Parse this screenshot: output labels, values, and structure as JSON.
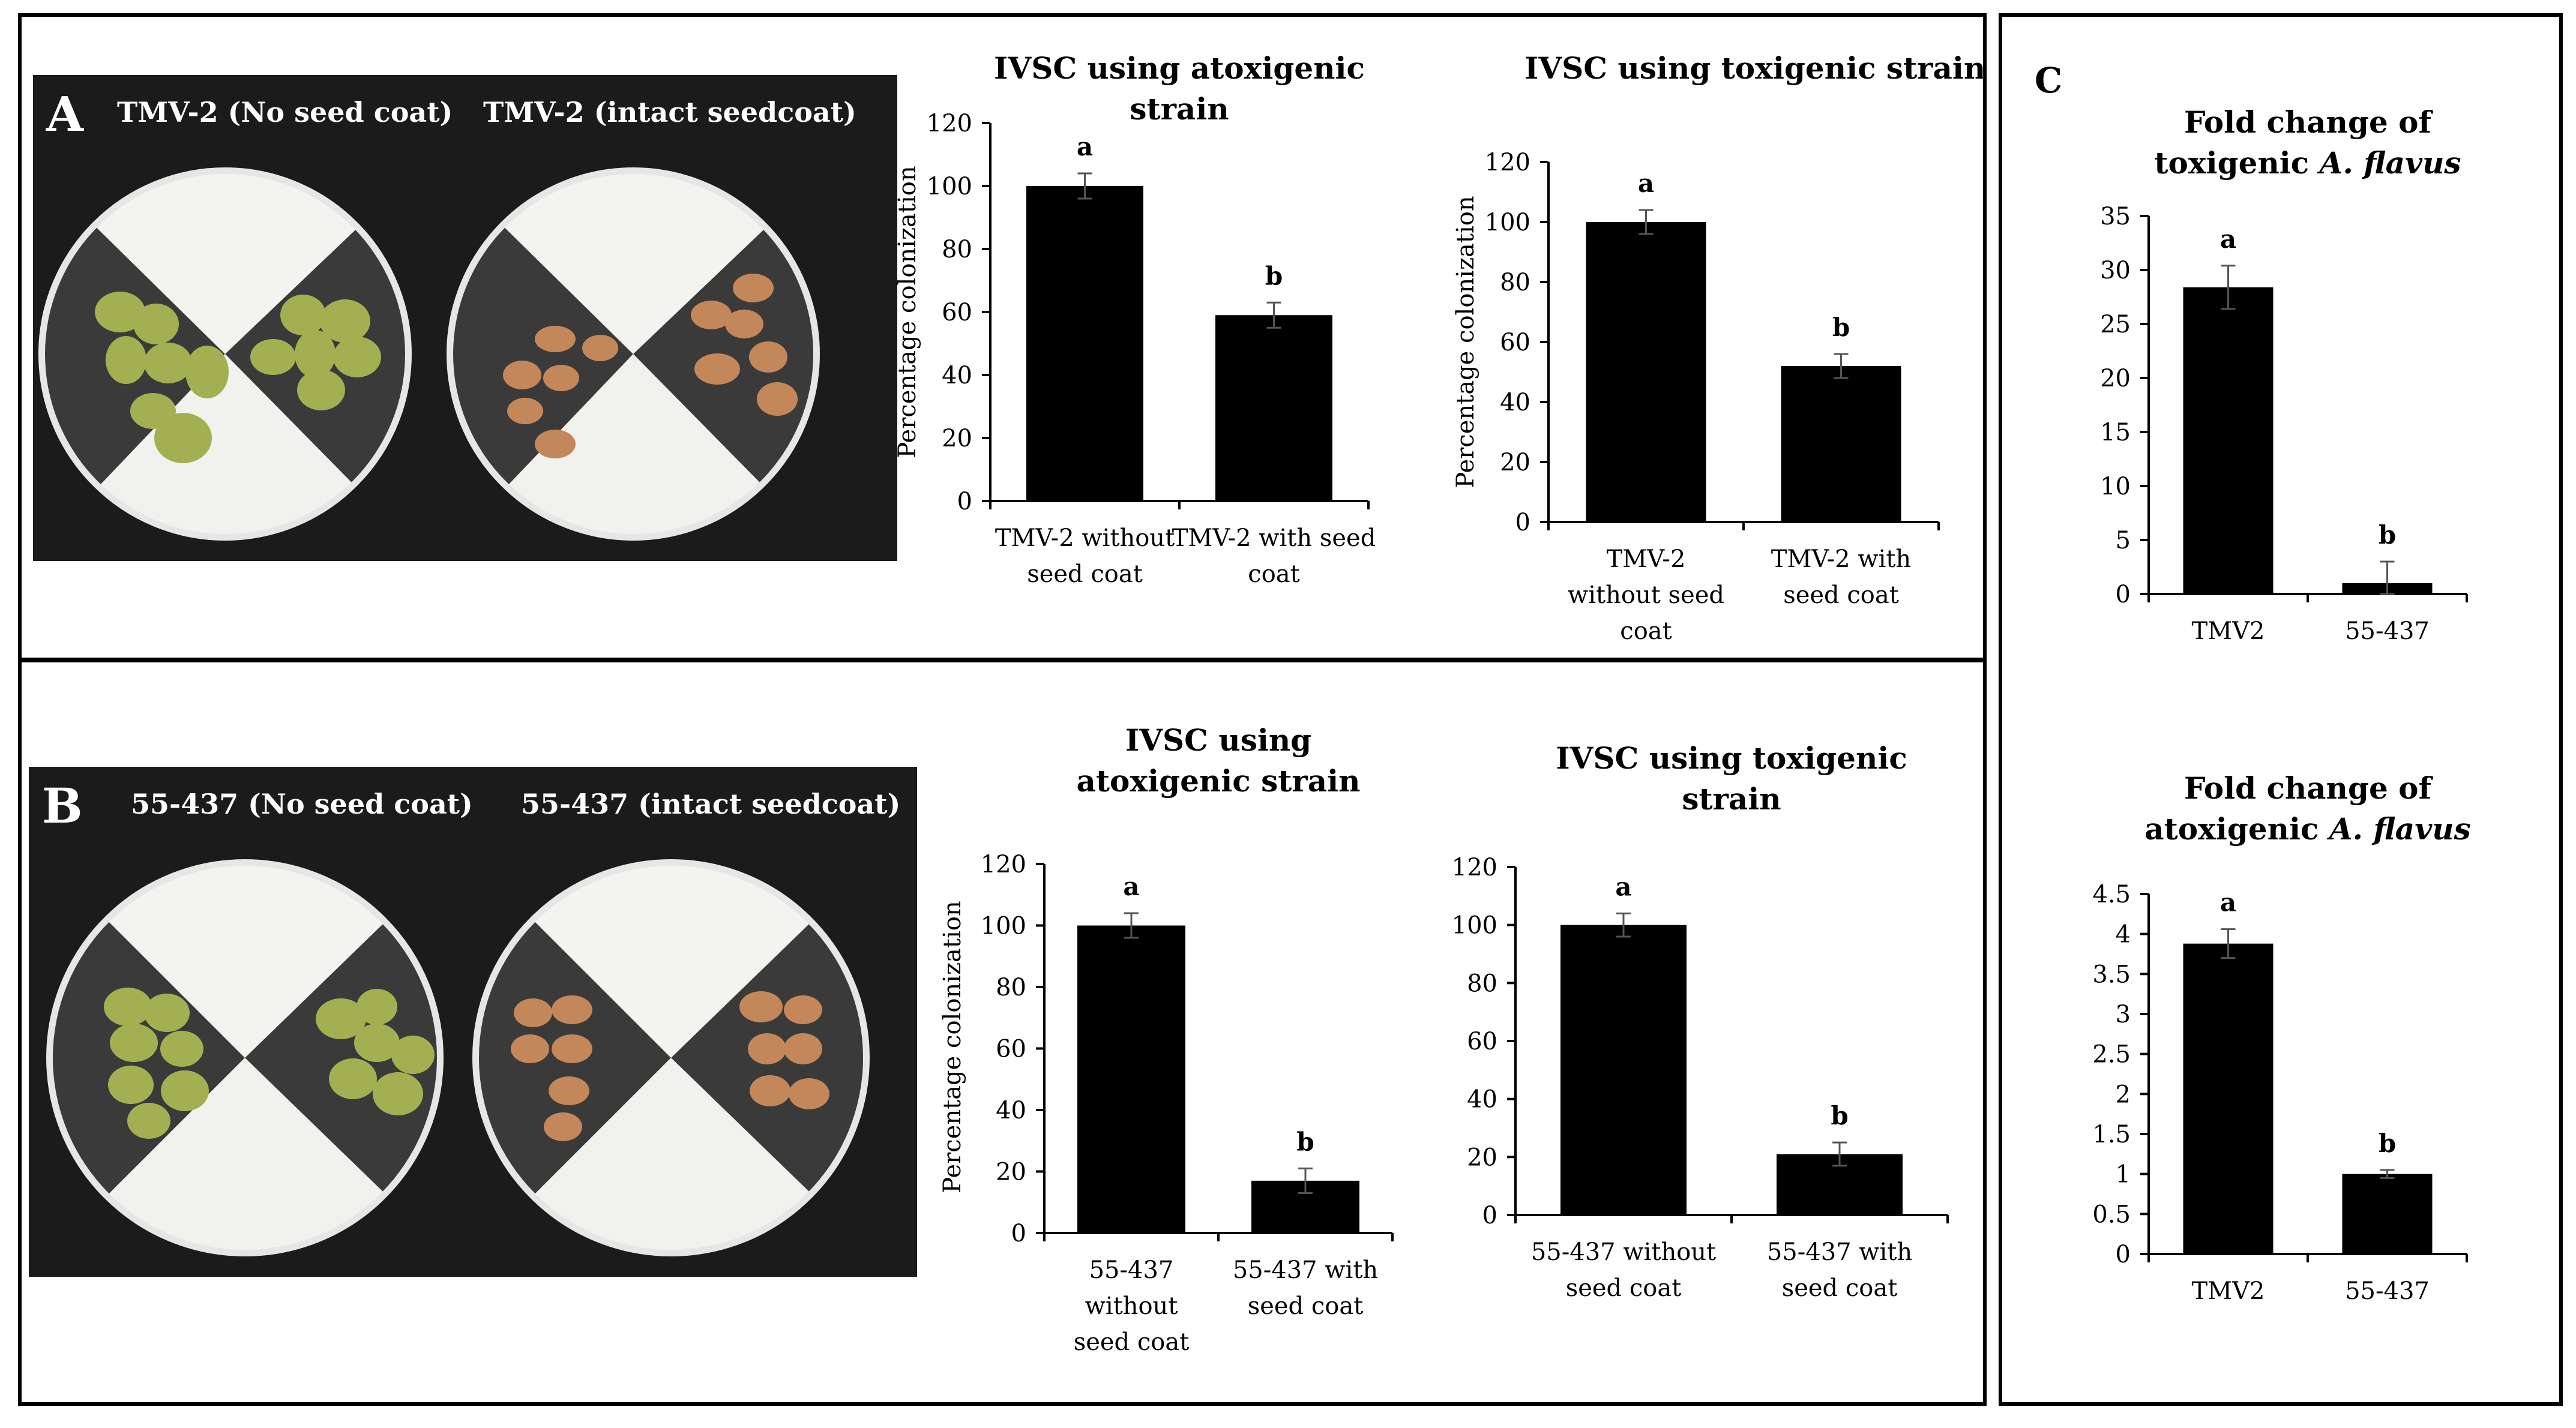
{
  "panel_a": {
    "letter": "A",
    "photo_label_left": "TMV-2 (No seed coat)",
    "photo_label_right": "TMV-2 (intact seedcoat)"
  },
  "panel_b": {
    "letter": "B",
    "photo_label_left": "55-437 (No seed coat)",
    "photo_label_right": "55-437  (intact seedcoat)"
  },
  "panel_c": {
    "letter": "C"
  },
  "colors": {
    "bar": "#000000",
    "axis": "#000000",
    "mold": "#9aa84c",
    "kernel": "#b67a4c",
    "photo_bg": "#1b1b1b"
  },
  "chart_data": [
    {
      "id": "a_atox",
      "type": "bar",
      "title_lines": [
        "IVSC using atoxigenic",
        "strain"
      ],
      "ylabel": "Percentage colonization",
      "categories": [
        [
          "TMV-2 without",
          "seed coat"
        ],
        [
          "TMV-2 with seed",
          "coat"
        ]
      ],
      "values": [
        100,
        59
      ],
      "errors": [
        4,
        4
      ],
      "letters": [
        "a",
        "b"
      ],
      "ylim": [
        0,
        120
      ],
      "yticks": [
        "0",
        "20",
        "40",
        "60",
        "80",
        "100",
        "120"
      ]
    },
    {
      "id": "a_tox",
      "type": "bar",
      "title_lines": [
        "IVSC using toxigenic strain"
      ],
      "ylabel": "Percentage colonization",
      "categories": [
        [
          "TMV-2",
          "without  seed",
          "coat"
        ],
        [
          "TMV-2 with",
          "seed coat"
        ]
      ],
      "values": [
        100,
        52
      ],
      "errors": [
        4,
        4
      ],
      "letters": [
        "a",
        "b"
      ],
      "ylim": [
        0,
        120
      ],
      "yticks": [
        "0",
        "20",
        "40",
        "60",
        "80",
        "100",
        "120"
      ]
    },
    {
      "id": "b_atox",
      "type": "bar",
      "title_lines": [
        "IVSC using",
        "atoxigenic strain"
      ],
      "ylabel": "Percentage colonization",
      "categories": [
        [
          "55-437",
          "without",
          "seed coat"
        ],
        [
          "55-437 with",
          "seed coat"
        ]
      ],
      "values": [
        100,
        17
      ],
      "errors": [
        4,
        4
      ],
      "letters": [
        "a",
        "b"
      ],
      "ylim": [
        0,
        120
      ],
      "yticks": [
        "0",
        "20",
        "40",
        "60",
        "80",
        "100",
        "120"
      ]
    },
    {
      "id": "b_tox",
      "type": "bar",
      "title_lines": [
        "IVSC  using  toxigenic",
        "strain"
      ],
      "ylabel": "",
      "categories": [
        [
          "55-437 without",
          "seed coat"
        ],
        [
          "55-437 with",
          "seed coat"
        ]
      ],
      "values": [
        100,
        21
      ],
      "errors": [
        4,
        4
      ],
      "letters": [
        "a",
        "b"
      ],
      "ylim": [
        0,
        120
      ],
      "yticks": [
        "0",
        "20",
        "40",
        "60",
        "80",
        "100",
        "120"
      ]
    },
    {
      "id": "c_tox",
      "type": "bar",
      "title_lines": [
        "Fold change of",
        "toxigenic A. flavus"
      ],
      "ylabel": "",
      "categories": [
        [
          "TMV2"
        ],
        [
          "55-437"
        ]
      ],
      "values": [
        28.4,
        1
      ],
      "errors": [
        2,
        2
      ],
      "letters": [
        "a",
        "b"
      ],
      "ylim": [
        0,
        35
      ],
      "yticks": [
        "0",
        "5",
        "10",
        "15",
        "20",
        "25",
        "30",
        "35"
      ]
    },
    {
      "id": "c_atox",
      "type": "bar",
      "title_lines": [
        "Fold change  of",
        "atoxigenic A. flavus"
      ],
      "ylabel": "",
      "categories": [
        [
          "TMV2"
        ],
        [
          "55-437"
        ]
      ],
      "values": [
        3.88,
        1
      ],
      "errors": [
        0.18,
        0.05
      ],
      "letters": [
        "a",
        "b"
      ],
      "ylim": [
        0,
        4.5
      ],
      "yticks": [
        "0",
        "0.5",
        "1",
        "1.5",
        "2",
        "2.5",
        "3",
        "3.5",
        "4",
        "4.5"
      ]
    }
  ]
}
